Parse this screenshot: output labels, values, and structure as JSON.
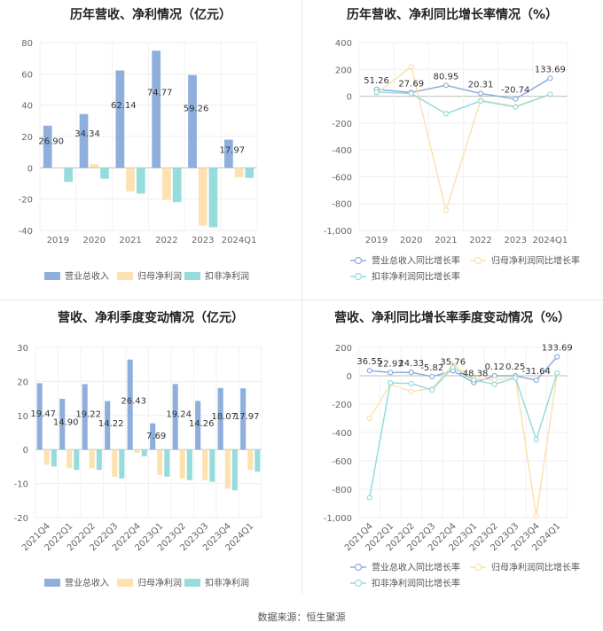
{
  "source": "数据来源：恒生聚源",
  "chart_data": [
    {
      "id": "annual_bar",
      "type": "bar",
      "title": "历年营收、净利情况（亿元）",
      "categories": [
        "2019",
        "2020",
        "2021",
        "2022",
        "2023",
        "2024Q1"
      ],
      "series": [
        {
          "name": "营业总收入",
          "color": "#8eaedc",
          "values": [
            26.9,
            34.34,
            62.14,
            74.77,
            59.26,
            17.97
          ],
          "labels": [
            "26.90",
            "34.34",
            "62.14",
            "74.77",
            "59.26",
            "17.97"
          ]
        },
        {
          "name": "归母净利润",
          "color": "#fde1b0",
          "values": [
            -0.5,
            2.3,
            -15,
            -20.5,
            -37,
            -6
          ]
        },
        {
          "name": "扣非净利润",
          "color": "#96dcdc",
          "values": [
            -9,
            -7,
            -16.5,
            -22,
            -38,
            -6.5
          ]
        }
      ],
      "yticks": [
        80,
        60,
        40,
        20,
        0,
        -20,
        -40
      ],
      "ylim": [
        -40,
        80
      ]
    },
    {
      "id": "annual_line",
      "type": "line",
      "title": "历年营收、净利同比增长率情况（%）",
      "categories": [
        "2019",
        "2020",
        "2021",
        "2022",
        "2023",
        "2024Q1"
      ],
      "series": [
        {
          "name": "营业总收入同比增长率",
          "color": "#8eaedc",
          "values": [
            51.26,
            27.69,
            80.95,
            20.31,
            -20.74,
            133.69
          ],
          "labels": [
            "51.26",
            "27.69",
            "80.95",
            "20.31",
            "-20.74",
            "133.69"
          ]
        },
        {
          "name": "归母净利润同比增长率",
          "color": "#fde1b0",
          "values": [
            20,
            220,
            -850,
            -30,
            -75,
            10
          ]
        },
        {
          "name": "扣非净利润同比增长率",
          "color": "#96dcdc",
          "values": [
            30,
            20,
            -130,
            -35,
            -80,
            15
          ]
        }
      ],
      "yticks": [
        400,
        200,
        0,
        -200,
        -400,
        -600,
        -800,
        -1000
      ],
      "yticklabels": [
        "400",
        "200",
        "0",
        "-200",
        "-400",
        "-600",
        "-800",
        "-1,000"
      ],
      "ylim": [
        -1000,
        400
      ]
    },
    {
      "id": "quarter_bar",
      "type": "bar",
      "title": "营收、净利季度变动情况（亿元）",
      "categories": [
        "2021Q4",
        "2022Q1",
        "2022Q2",
        "2022Q3",
        "2022Q4",
        "2023Q1",
        "2023Q2",
        "2023Q3",
        "2023Q4",
        "2024Q1"
      ],
      "series": [
        {
          "name": "营业总收入",
          "color": "#8eaedc",
          "values": [
            19.47,
            14.9,
            19.22,
            14.22,
            26.43,
            7.69,
            19.24,
            14.26,
            18.07,
            17.97
          ],
          "labels": [
            "19.47",
            "14.90",
            "19.22",
            "14.22",
            "26.43",
            "7.69",
            "19.24",
            "14.26",
            "18.07",
            "17.97"
          ]
        },
        {
          "name": "归母净利润",
          "color": "#fde1b0",
          "values": [
            -4.5,
            -5.5,
            -5.5,
            -8,
            -1,
            -7.5,
            -8.5,
            -9,
            -11.5,
            -6
          ]
        },
        {
          "name": "扣非净利润",
          "color": "#96dcdc",
          "values": [
            -5,
            -6,
            -6,
            -8.5,
            -2,
            -8,
            -9,
            -9.5,
            -12,
            -6.5
          ]
        }
      ],
      "yticks": [
        30,
        20,
        10,
        0,
        -10,
        -20
      ],
      "ylim": [
        -20,
        30
      ]
    },
    {
      "id": "quarter_line",
      "type": "line",
      "title": "营收、净利同比增长率季度变动情况（%）",
      "categories": [
        "2021Q4",
        "2022Q1",
        "2022Q2",
        "2022Q3",
        "2022Q4",
        "2023Q1",
        "2023Q2",
        "2023Q3",
        "2023Q4",
        "2024Q1"
      ],
      "series": [
        {
          "name": "营业总收入同比增长率",
          "color": "#8eaedc",
          "values": [
            36.55,
            22.93,
            24.33,
            -5.82,
            35.76,
            -48.38,
            0.12,
            0.25,
            -31.64,
            133.69
          ],
          "labels": [
            "36.55",
            "22.93",
            "24.33",
            "-5.82",
            "35.76",
            "-48.38",
            "0.12",
            "0.25",
            "-31.64",
            "133.69"
          ]
        },
        {
          "name": "归母净利润同比增长率",
          "color": "#fde1b0",
          "values": [
            -300,
            -60,
            -110,
            -90,
            80,
            -20,
            -30,
            -10,
            -990,
            10
          ]
        },
        {
          "name": "扣非净利润同比增长率",
          "color": "#96dcdc",
          "values": [
            -860,
            -50,
            -55,
            -100,
            60,
            -30,
            -60,
            -15,
            -450,
            20
          ]
        }
      ],
      "yticks": [
        200,
        0,
        -200,
        -400,
        -600,
        -800,
        -1000
      ],
      "yticklabels": [
        "200",
        "0",
        "-200",
        "-400",
        "-600",
        "-800",
        "-1,000"
      ],
      "ylim": [
        -1000,
        200
      ]
    }
  ]
}
